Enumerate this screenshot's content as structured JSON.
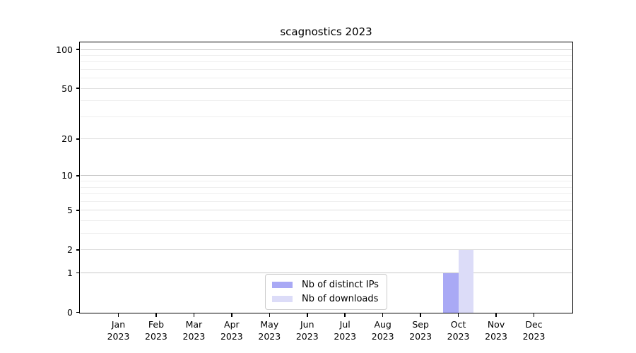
{
  "chart_data": {
    "type": "bar",
    "title": "scagnostics 2023",
    "categories": [
      "Jan",
      "Feb",
      "Mar",
      "Apr",
      "May",
      "Jun",
      "Jul",
      "Aug",
      "Sep",
      "Oct",
      "Nov",
      "Dec"
    ],
    "category_year": "2023",
    "series": [
      {
        "name": "Nb of distinct IPs",
        "color": "#a9a9f5",
        "values": [
          0,
          0,
          0,
          0,
          0,
          0,
          0,
          0,
          0,
          1,
          0,
          0
        ]
      },
      {
        "name": "Nb of downloads",
        "color": "#dcdcf8",
        "values": [
          0,
          0,
          0,
          0,
          0,
          0,
          0,
          0,
          0,
          2,
          0,
          0
        ]
      }
    ],
    "y_axis": {
      "scale": "log1p",
      "labeled_ticks": [
        0,
        1,
        2,
        5,
        10,
        20,
        50,
        100
      ],
      "decade_ticks": [
        1,
        10,
        100
      ],
      "minor_ticks": [
        3,
        4,
        6,
        7,
        8,
        9,
        30,
        40,
        60,
        70,
        80,
        90
      ],
      "top_value": 100
    },
    "legend": {
      "position": "lower center"
    },
    "grid": "on",
    "colors": {
      "axis": "#000000",
      "grid_major": "#c8c8c8",
      "grid_minor": "#eeeeee",
      "background": "#ffffff"
    }
  }
}
